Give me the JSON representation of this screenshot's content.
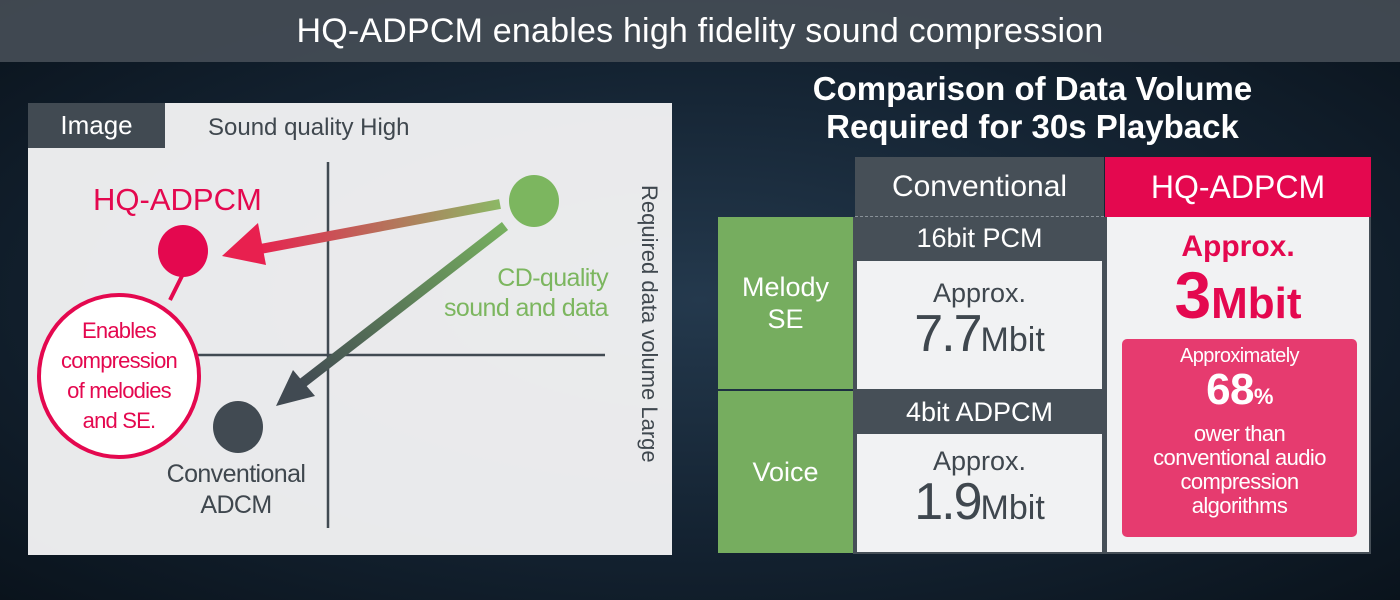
{
  "title": "HQ-ADPCM enables high fidelity sound compression",
  "diagram": {
    "tab": "Image",
    "y_axis_label": "Sound quality High",
    "x_axis_label": "Required data volume Large",
    "points": [
      {
        "label": "HQ-ADPCM",
        "color": "#e4084f"
      },
      {
        "label_lines": [
          "CD-quality",
          "sound and data"
        ],
        "color": "#7cb65f"
      },
      {
        "label_lines": [
          "Conventional",
          "ADCM"
        ],
        "color": "#414a52"
      }
    ],
    "callout_lines": [
      "Enables",
      "compression",
      "of melodies",
      "and SE."
    ]
  },
  "comparison": {
    "title_lines": [
      "Comparison of Data Volume",
      "Required for 30s Playback"
    ],
    "col_conventional": "Conventional",
    "col_hq": "HQ-ADPCM",
    "rows": [
      {
        "label_lines": [
          "Melody",
          "SE"
        ],
        "format": "16bit PCM",
        "approx": "Approx.",
        "value": "7.7",
        "unit": "Mbit"
      },
      {
        "label_lines": [
          "Voice"
        ],
        "format": "4bit ADPCM",
        "approx": "Approx.",
        "value": "1.9",
        "unit": "Mbit"
      }
    ],
    "hq": {
      "approx": "Approx.",
      "value": "3",
      "unit": "Mbit",
      "savings": {
        "prefix": "Approximately",
        "value": "68",
        "unit": "%",
        "lines": [
          "ower than",
          "conventional audio",
          "compression",
          "algorithms"
        ]
      }
    }
  },
  "colors": {
    "accent": "#e4084f",
    "green": "#76ad5f",
    "dark": "#464f57",
    "pink": "#e63b6f"
  }
}
